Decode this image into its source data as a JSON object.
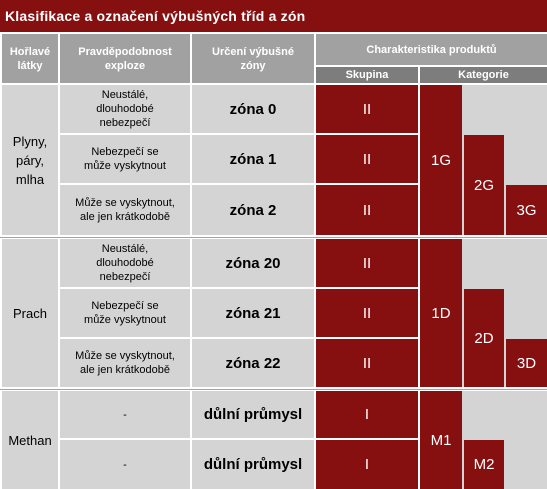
{
  "title": "Klasifikace a označení výbušných tříd a zón",
  "headers": {
    "substances": "Hořlavé látky",
    "probability": "Pravděpodobnost exploze",
    "zone_designation": "Určení výbušné zóny",
    "characteristics": "Charakteristika produktů",
    "group": "Skupina",
    "category": "Kategorie"
  },
  "sections": [
    {
      "substance": "Plyny, páry, mlha",
      "rows": [
        {
          "probability": "Neustálé, dlouhodobé nebezpečí",
          "zone": "zóna 0",
          "group": "II"
        },
        {
          "probability": "Nebezpečí se může vyskytnout",
          "zone": "zóna 1",
          "group": "II"
        },
        {
          "probability": "Může se vyskytnout, ale jen krátkodobě",
          "zone": "zóna 2",
          "group": "II"
        }
      ],
      "categories": [
        "1G",
        "2G",
        "3G"
      ]
    },
    {
      "substance": "Prach",
      "rows": [
        {
          "probability": "Neustálé, dlouhodobé nebezpečí",
          "zone": "zóna 20",
          "group": "II"
        },
        {
          "probability": "Nebezpečí se může vyskytnout",
          "zone": "zóna 21",
          "group": "II"
        },
        {
          "probability": "Může se vyskytnout, ale jen krátkodobě",
          "zone": "zóna 22",
          "group": "II"
        }
      ],
      "categories": [
        "1D",
        "2D",
        "3D"
      ]
    },
    {
      "substance": "Methan",
      "rows": [
        {
          "probability": "-",
          "zone": "důlní průmysl",
          "group": "I"
        },
        {
          "probability": "-",
          "zone": "důlní průmysl",
          "group": "I"
        }
      ],
      "categories": [
        "M1",
        "M2"
      ]
    }
  ],
  "colors": {
    "accent": "#860f10",
    "header": "#a1a1a1",
    "subheader": "#7d7d7d",
    "cell": "#d4d4d4"
  }
}
